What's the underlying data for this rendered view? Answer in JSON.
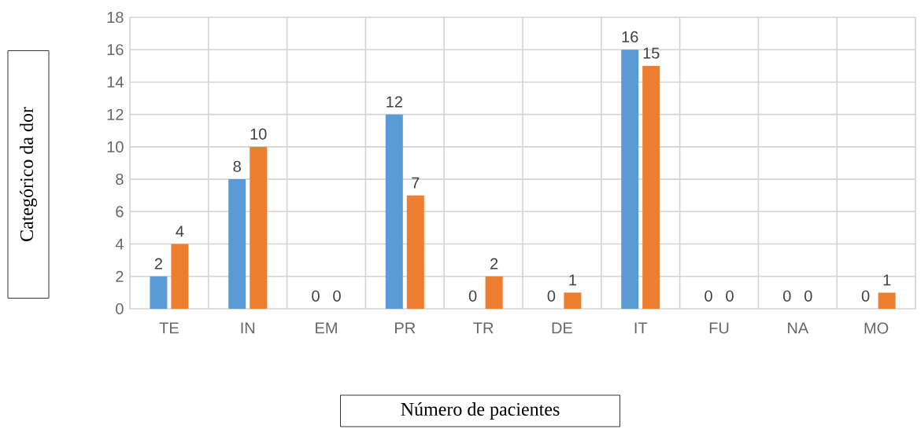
{
  "chart_data": {
    "type": "bar",
    "xlabel": "Número de pacientes",
    "ylabel": "Categórico da dor",
    "categories": [
      "TE",
      "IN",
      "EM",
      "PR",
      "TR",
      "DE",
      "IT",
      "FU",
      "NA",
      "MO"
    ],
    "series": [
      {
        "color": "#5b9bd5",
        "values": [
          2,
          8,
          0,
          12,
          0,
          0,
          16,
          0,
          0,
          0
        ]
      },
      {
        "color": "#ed7d31",
        "values": [
          4,
          10,
          0,
          7,
          2,
          1,
          15,
          0,
          0,
          1
        ]
      }
    ],
    "ylim": [
      0,
      18
    ],
    "yticks": [
      0,
      2,
      4,
      6,
      8,
      10,
      12,
      14,
      16,
      18
    ],
    "grid": true,
    "data_labels": true
  }
}
